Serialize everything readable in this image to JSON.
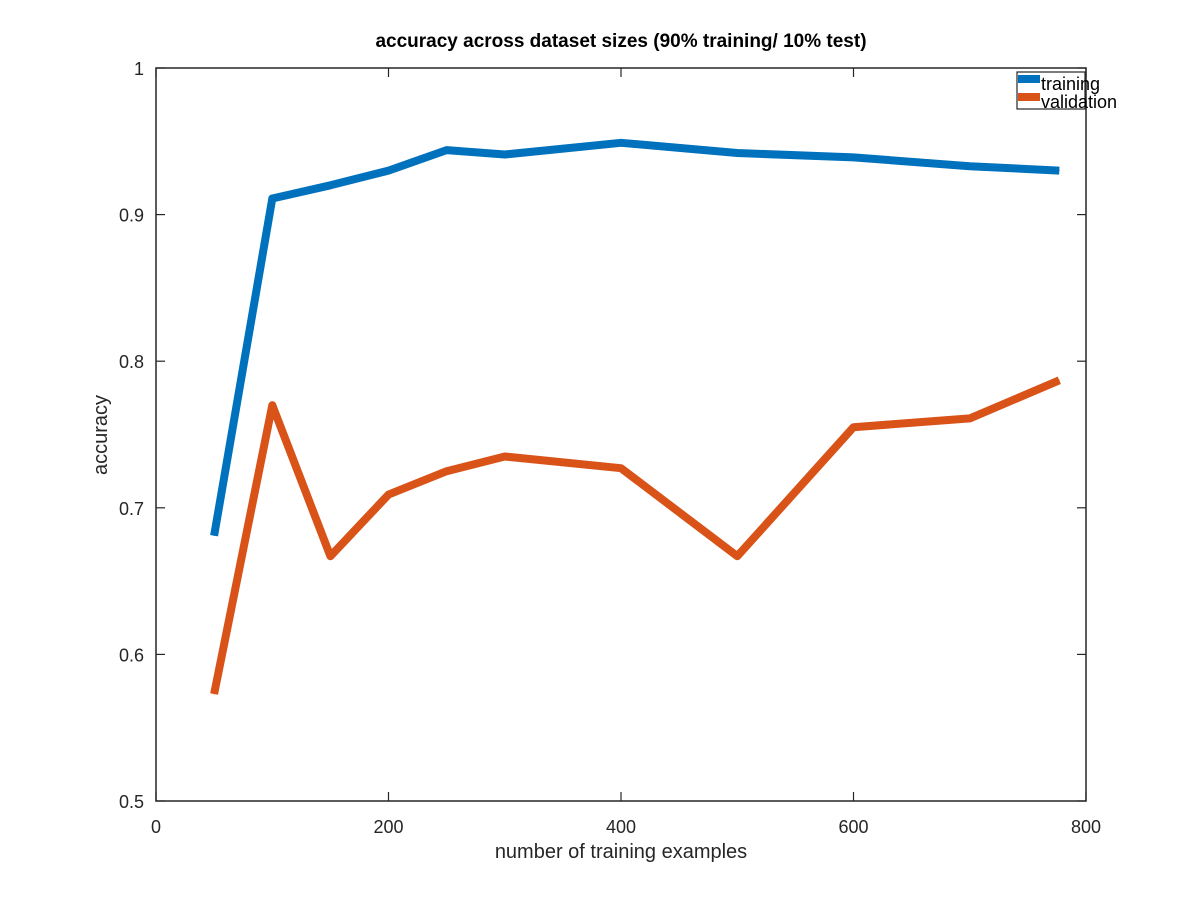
{
  "chart_data": {
    "type": "line",
    "title": "accuracy across dataset sizes (90% training/ 10% test)",
    "xlabel": "number of training examples",
    "ylabel": "accuracy",
    "xlim": [
      0,
      800
    ],
    "ylim": [
      0.5,
      1
    ],
    "xticks": [
      0,
      200,
      400,
      600,
      800
    ],
    "yticks": [
      0.5,
      0.6,
      0.7,
      0.8,
      0.9,
      1
    ],
    "xtick_labels": [
      "0",
      "200",
      "400",
      "600",
      "800"
    ],
    "ytick_labels": [
      "0.5",
      "0.6",
      "0.7",
      "0.8",
      "0.9",
      "1"
    ],
    "grid": false,
    "legend_position": "top-right",
    "series": [
      {
        "name": "training",
        "color": "#0072BD",
        "x": [
          50,
          100,
          150,
          200,
          250,
          300,
          400,
          500,
          600,
          700,
          777
        ],
        "y": [
          0.681,
          0.911,
          0.92,
          0.93,
          0.944,
          0.941,
          0.949,
          0.942,
          0.939,
          0.933,
          0.93
        ]
      },
      {
        "name": "validation",
        "color": "#D95319",
        "x": [
          50,
          100,
          150,
          200,
          250,
          300,
          400,
          500,
          600,
          700,
          777
        ],
        "y": [
          0.573,
          0.77,
          0.667,
          0.709,
          0.725,
          0.735,
          0.727,
          0.667,
          0.755,
          0.761,
          0.787
        ]
      }
    ]
  }
}
